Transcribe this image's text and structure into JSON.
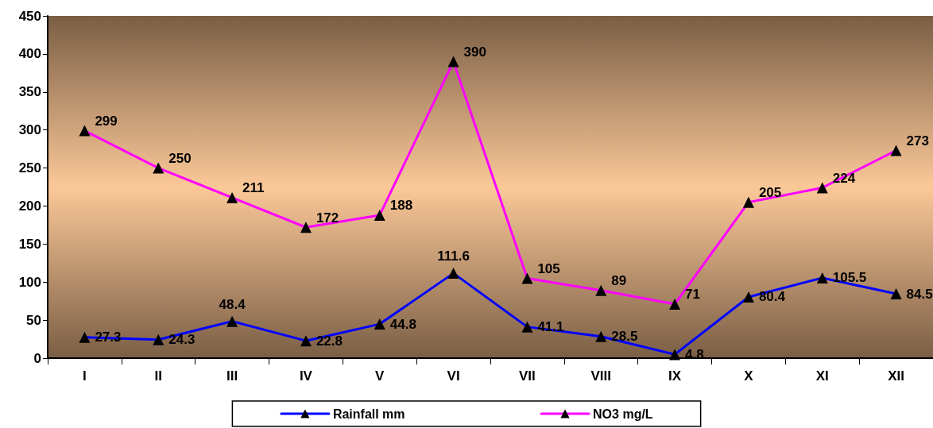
{
  "chart_data": {
    "type": "line",
    "categories": [
      "I",
      "II",
      "III",
      "IV",
      "V",
      "VI",
      "VII",
      "VIII",
      "IX",
      "X",
      "XI",
      "XII"
    ],
    "series": [
      {
        "name": "Rainfall mm",
        "color": "#0000ff",
        "values": [
          27.3,
          24.3,
          48.4,
          22.8,
          44.8,
          111.6,
          41.1,
          28.5,
          4.8,
          80.4,
          105.5,
          84.5
        ]
      },
      {
        "name": "NO3 mg/L",
        "color": "#ff00ff",
        "values": [
          299,
          250,
          211,
          172,
          188,
          390,
          105,
          89,
          71,
          205,
          224,
          273
        ]
      }
    ],
    "ylim": [
      0,
      450
    ],
    "yticks": [
      0,
      50,
      100,
      150,
      200,
      250,
      300,
      350,
      400,
      450
    ],
    "grid": false,
    "legend": "bottom",
    "marker": "triangle",
    "line_style": "solid",
    "data_labels": true
  }
}
